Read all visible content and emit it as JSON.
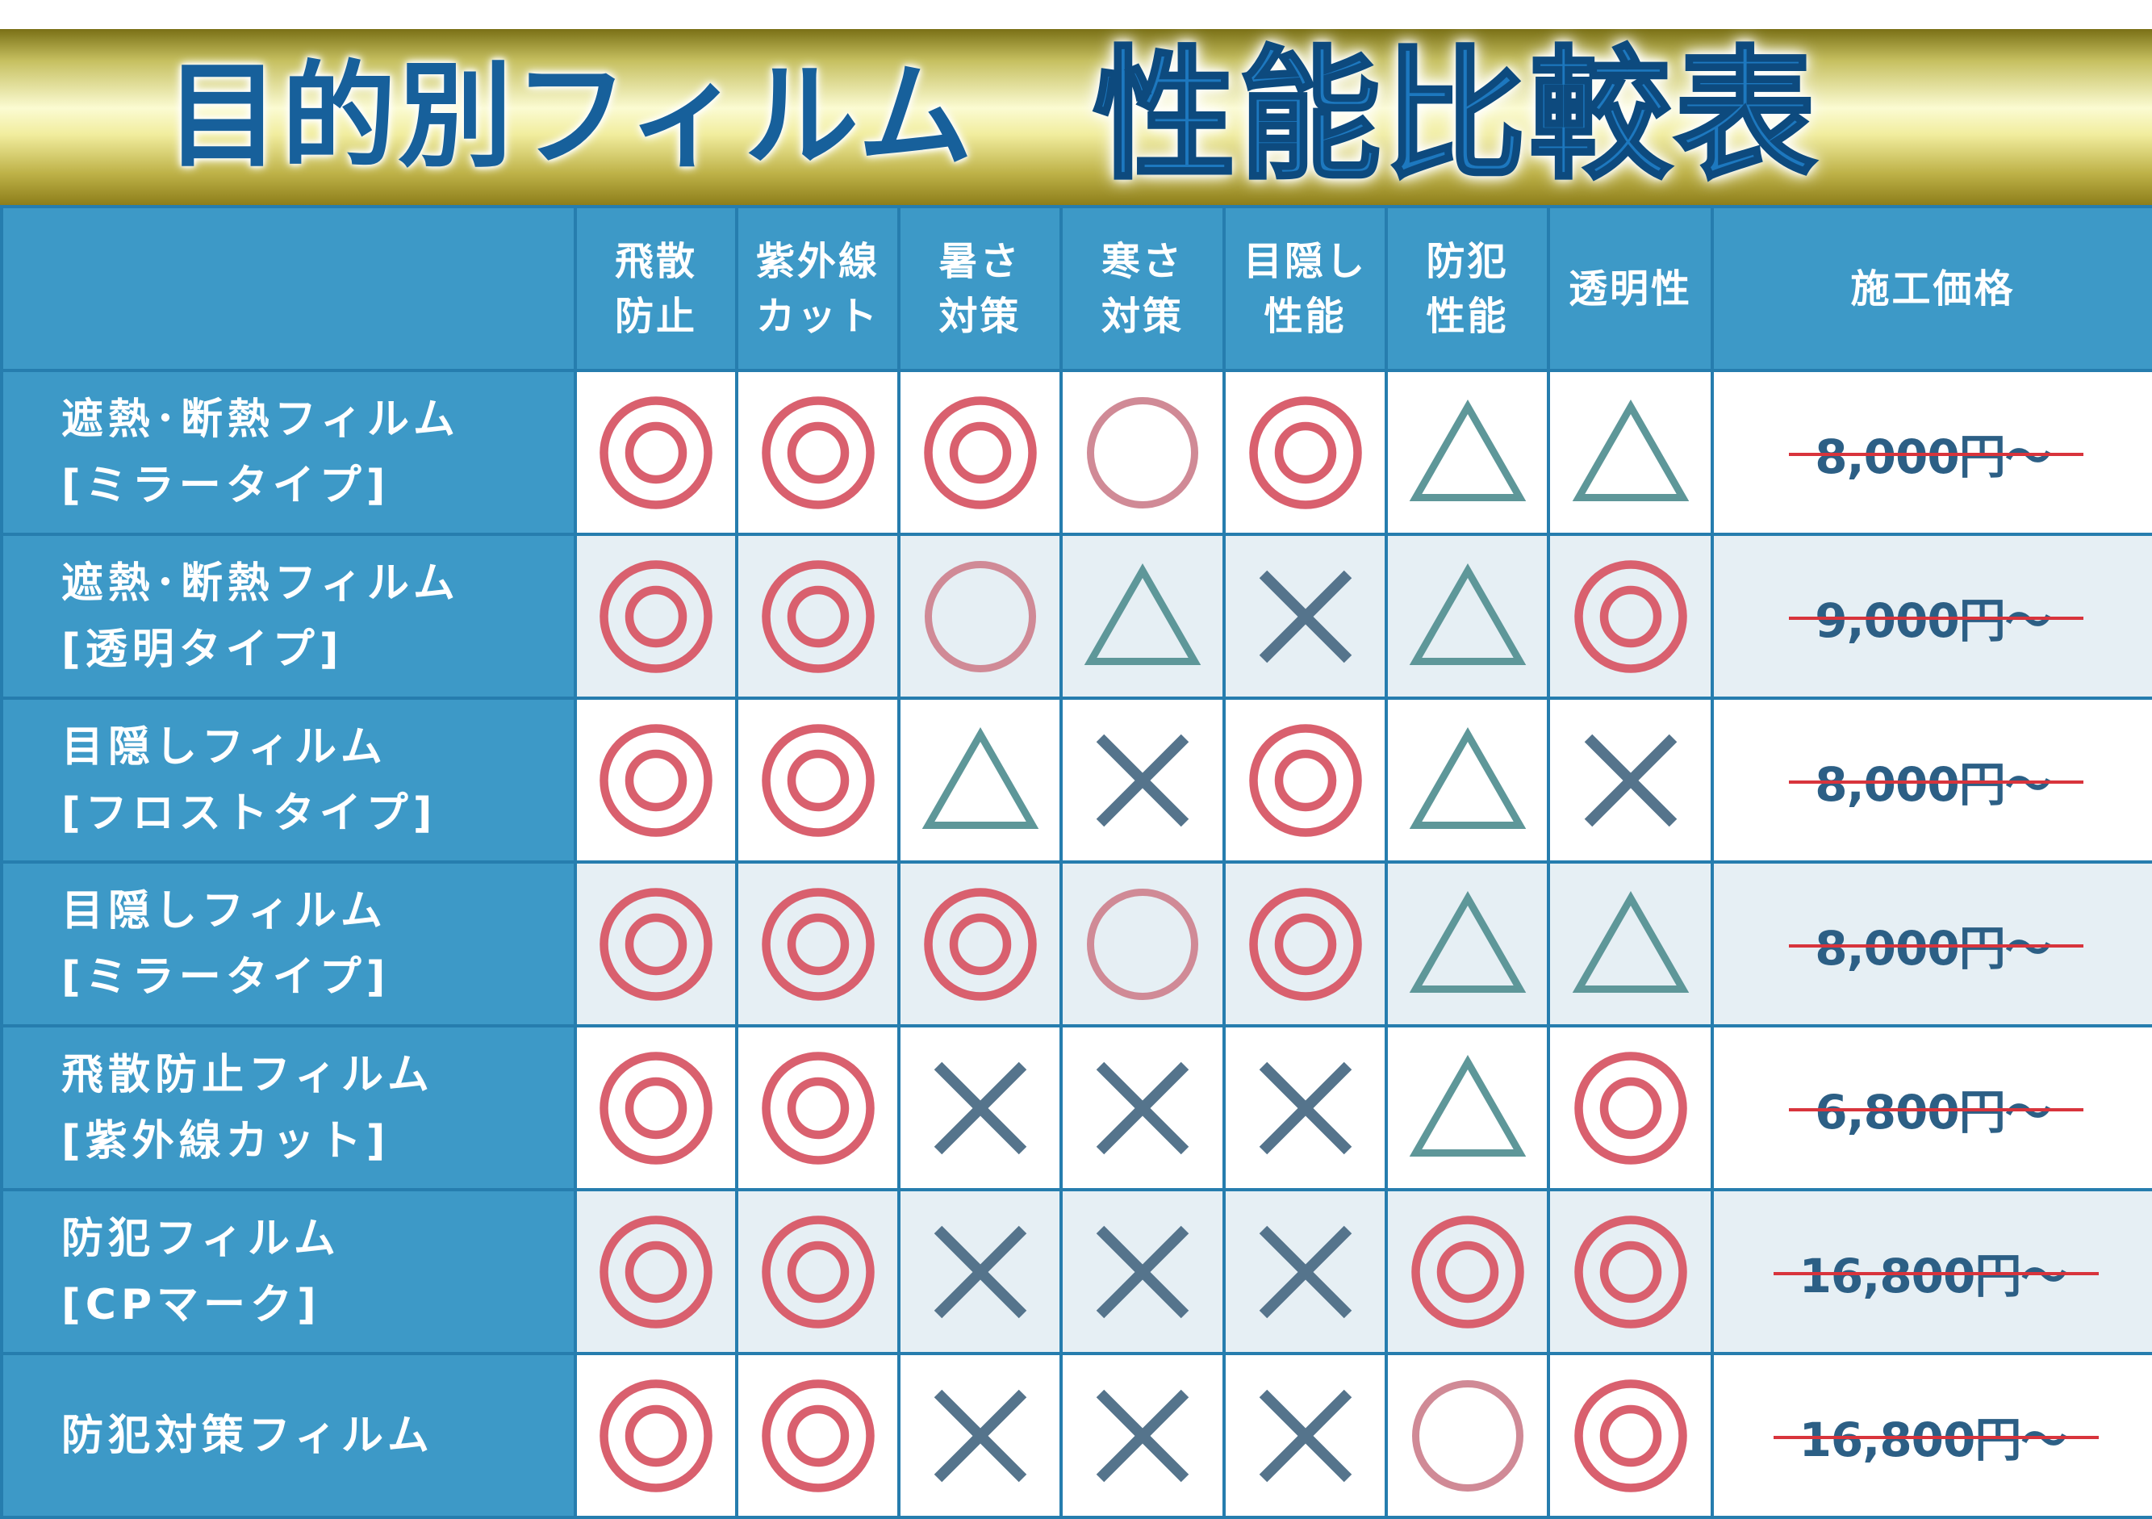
{
  "title": {
    "left": "目的別フィルム",
    "right": "性能比較表"
  },
  "header": {
    "columns": [
      {
        "line1": "飛散",
        "line2": "防止"
      },
      {
        "line1": "紫外線",
        "line2": "カット"
      },
      {
        "line1": "暑さ",
        "line2": "対策"
      },
      {
        "line1": "寒さ",
        "line2": "対策"
      },
      {
        "line1": "目隠し",
        "line2": "性能"
      },
      {
        "line1": "防犯",
        "line2": "性能"
      },
      {
        "line1": "透明性",
        "line2": ""
      }
    ],
    "price": "施工価格"
  },
  "mark_legend": {
    "double_circle": "◎",
    "circle": "○",
    "triangle": "△",
    "cross": "×"
  },
  "colors": {
    "double_circle": "#d9606e",
    "circle": "#d08a96",
    "triangle": "#5e9799",
    "cross": "#55748c",
    "header_bg": "#3d99c7",
    "title_dark": "#17609b",
    "strike": "#d8343c"
  },
  "rows": [
    {
      "name1": "遮熱･断熱フィルム",
      "name2": "[ミラータイプ]",
      "marks": [
        "double_circle",
        "double_circle",
        "double_circle",
        "circle",
        "double_circle",
        "triangle",
        "triangle"
      ],
      "price": "8,000円〜"
    },
    {
      "name1": "遮熱･断熱フィルム",
      "name2": "[透明タイプ]",
      "marks": [
        "double_circle",
        "double_circle",
        "circle",
        "triangle",
        "cross",
        "triangle",
        "double_circle"
      ],
      "price": "9,000円〜"
    },
    {
      "name1": "目隠しフィルム",
      "name2": "[フロストタイプ]",
      "marks": [
        "double_circle",
        "double_circle",
        "triangle",
        "cross",
        "double_circle",
        "triangle",
        "cross"
      ],
      "price": "8,000円〜"
    },
    {
      "name1": "目隠しフィルム",
      "name2": "[ミラータイプ]",
      "marks": [
        "double_circle",
        "double_circle",
        "double_circle",
        "circle",
        "double_circle",
        "triangle",
        "triangle"
      ],
      "price": "8,000円〜"
    },
    {
      "name1": "飛散防止フィルム",
      "name2": "[紫外線カット]",
      "marks": [
        "double_circle",
        "double_circle",
        "cross",
        "cross",
        "cross",
        "triangle",
        "double_circle"
      ],
      "price": "6,800円〜"
    },
    {
      "name1": "防犯フィルム",
      "name2": "[CPマーク]",
      "marks": [
        "double_circle",
        "double_circle",
        "cross",
        "cross",
        "cross",
        "double_circle",
        "double_circle"
      ],
      "price": "16,800円〜"
    },
    {
      "name1": "防犯対策フィルム",
      "name2": "",
      "marks": [
        "double_circle",
        "double_circle",
        "cross",
        "cross",
        "cross",
        "circle",
        "double_circle"
      ],
      "price": "16,800円〜"
    }
  ]
}
